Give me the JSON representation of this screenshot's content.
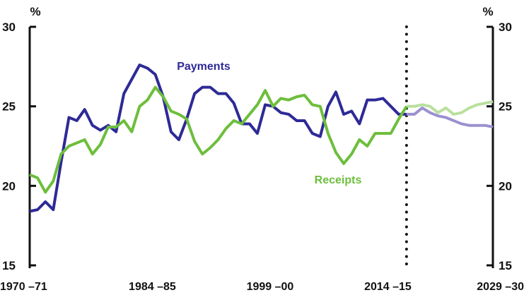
{
  "chart_data": {
    "type": "line",
    "title": "",
    "ylabel_left": "%",
    "ylabel_right": "%",
    "ylim": [
      15,
      30
    ],
    "yticks": [
      15,
      20,
      25,
      30
    ],
    "x_start_year": 1970,
    "x_end_year": 2029,
    "xtick_labels": [
      {
        "label": "1970 –71",
        "index": 0
      },
      {
        "label": "1984 –85",
        "index": 14
      },
      {
        "label": "1999 –00",
        "index": 29
      },
      {
        "label": "2014 –15",
        "index": 44
      },
      {
        "label": "2029 –30",
        "index": 59
      }
    ],
    "projection_start_index": 48,
    "series": [
      {
        "name": "Payments",
        "color": "#2E2A96",
        "projection_color": "#9B90CF",
        "values": [
          18.4,
          18.5,
          19.0,
          18.5,
          21.5,
          24.3,
          24.1,
          24.8,
          23.8,
          23.5,
          23.8,
          23.4,
          25.8,
          26.7,
          27.6,
          27.4,
          27.0,
          25.6,
          23.4,
          22.9,
          24.2,
          25.8,
          26.2,
          26.2,
          25.8,
          25.8,
          25.2,
          23.9,
          23.9,
          23.3,
          25.1,
          25.0,
          24.6,
          24.5,
          24.1,
          24.1,
          23.3,
          23.1,
          25.0,
          25.9,
          24.5,
          24.7,
          23.9,
          25.4,
          25.4,
          25.5,
          25.0,
          24.5,
          24.5,
          24.5,
          24.9,
          24.6,
          24.4,
          24.3,
          24.1,
          23.9,
          23.8,
          23.8,
          23.8,
          23.7
        ]
      },
      {
        "name": "Receipts",
        "color": "#6DBE3C",
        "projection_color": "#B8E09C",
        "values": [
          20.7,
          20.5,
          19.6,
          20.3,
          22.0,
          22.5,
          22.7,
          22.9,
          22.0,
          22.6,
          23.7,
          23.7,
          24.1,
          23.4,
          25.0,
          25.4,
          26.2,
          25.6,
          24.7,
          24.5,
          24.2,
          22.8,
          22.0,
          22.4,
          22.9,
          23.6,
          24.1,
          23.9,
          24.5,
          25.1,
          26.0,
          25.0,
          25.5,
          25.4,
          25.6,
          25.7,
          25.1,
          25.0,
          23.3,
          22.1,
          21.4,
          22.0,
          22.9,
          22.5,
          23.3,
          23.3,
          23.3,
          24.2,
          25.0,
          25.0,
          25.1,
          25.0,
          24.6,
          24.9,
          24.5,
          24.6,
          24.9,
          25.1,
          25.2,
          25.3
        ]
      }
    ],
    "annotations": [
      "Payments",
      "Receipts"
    ]
  }
}
